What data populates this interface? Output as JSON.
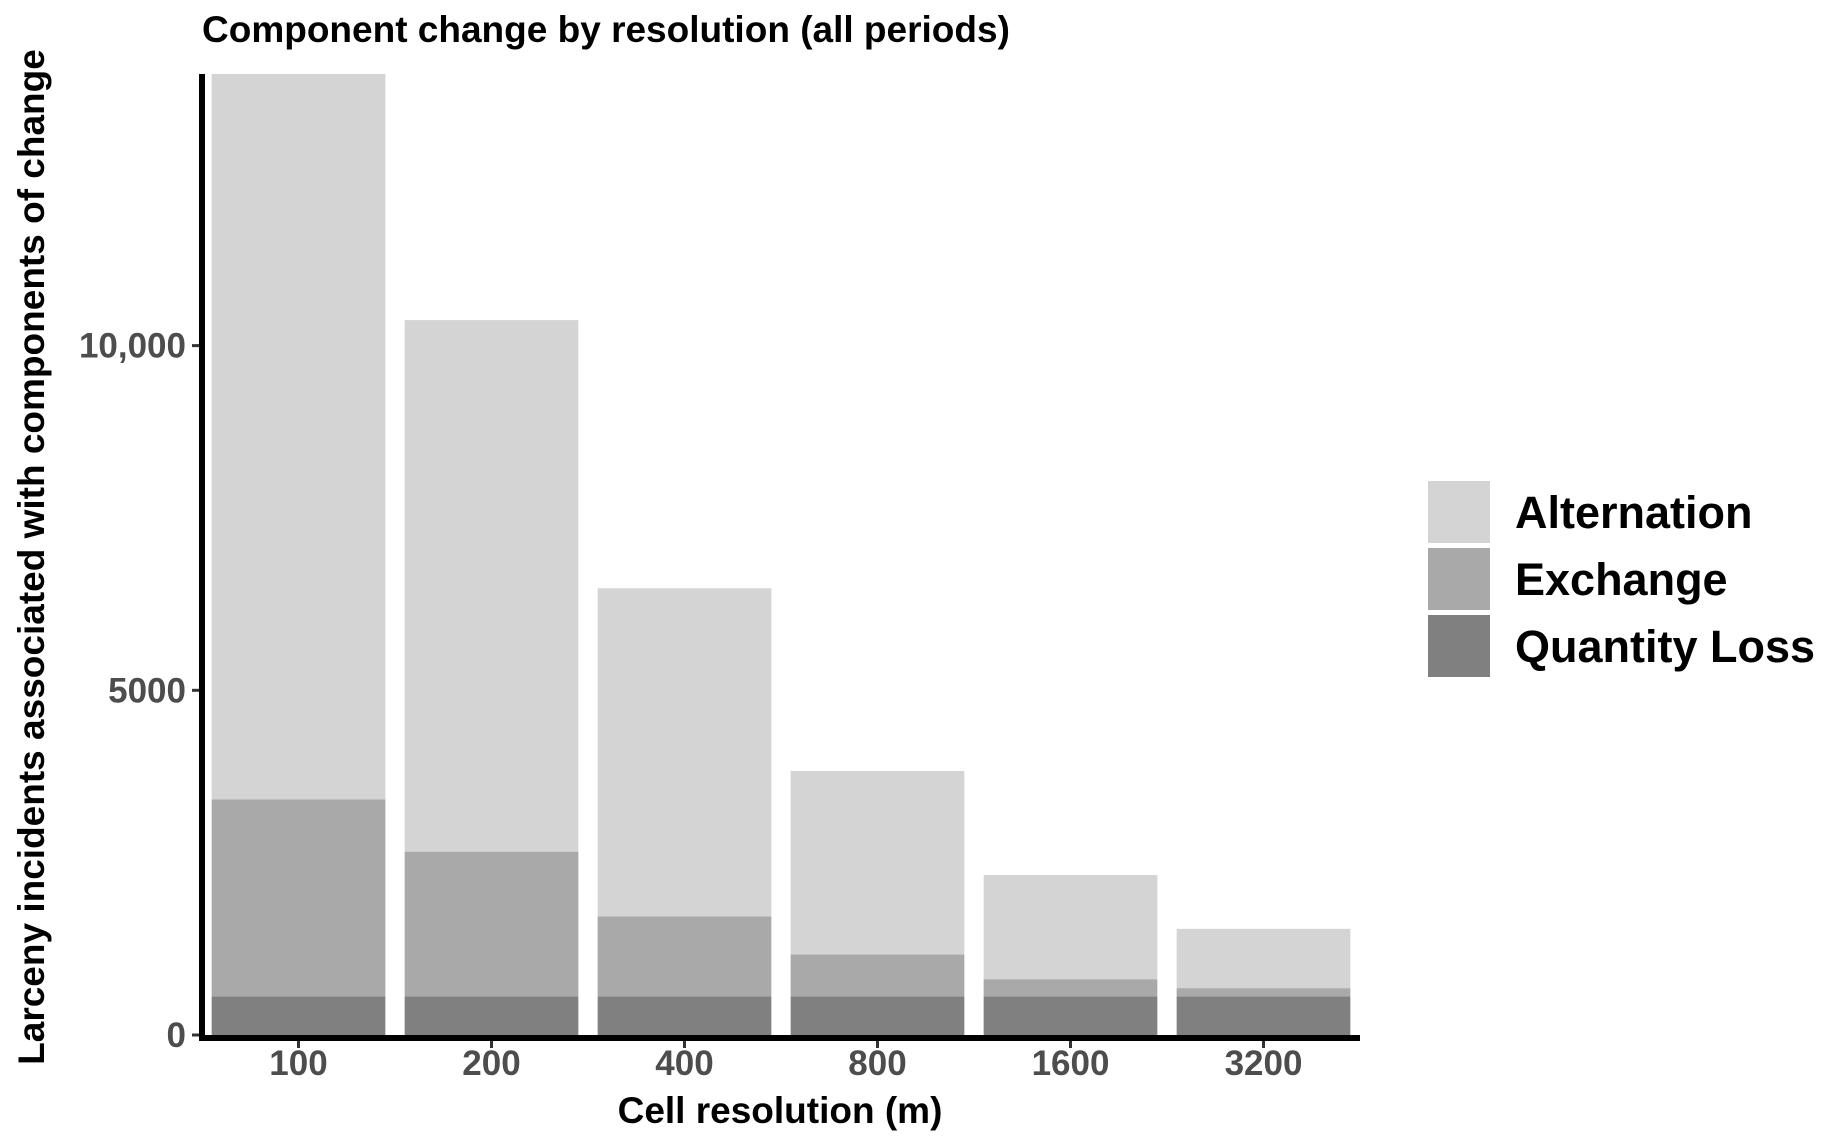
{
  "chart_data": {
    "type": "bar",
    "stacked": true,
    "title": "Component change by resolution (all periods)",
    "xlabel": "Cell resolution (m)",
    "ylabel": "Larceny incidents associated with components of change",
    "categories": [
      "100",
      "200",
      "400",
      "800",
      "1600",
      "3200"
    ],
    "series": [
      {
        "name": "Quantity Loss",
        "color": "#808080",
        "values": [
          560,
          560,
          560,
          560,
          560,
          560
        ]
      },
      {
        "name": "Exchange",
        "color": "#a9a9a9",
        "values": [
          2860,
          2100,
          1160,
          610,
          250,
          120
        ]
      },
      {
        "name": "Alternation",
        "color": "#d4d4d4",
        "values": [
          10520,
          7710,
          4760,
          2660,
          1510,
          860
        ]
      }
    ],
    "legend_order": [
      "Alternation",
      "Exchange",
      "Quantity Loss"
    ],
    "yticks": [
      0,
      5000,
      10000
    ],
    "ytick_labels": [
      "0",
      "5000",
      "10,000"
    ],
    "ylim": [
      0,
      13940
    ],
    "grid": false,
    "legend_position": "right"
  }
}
